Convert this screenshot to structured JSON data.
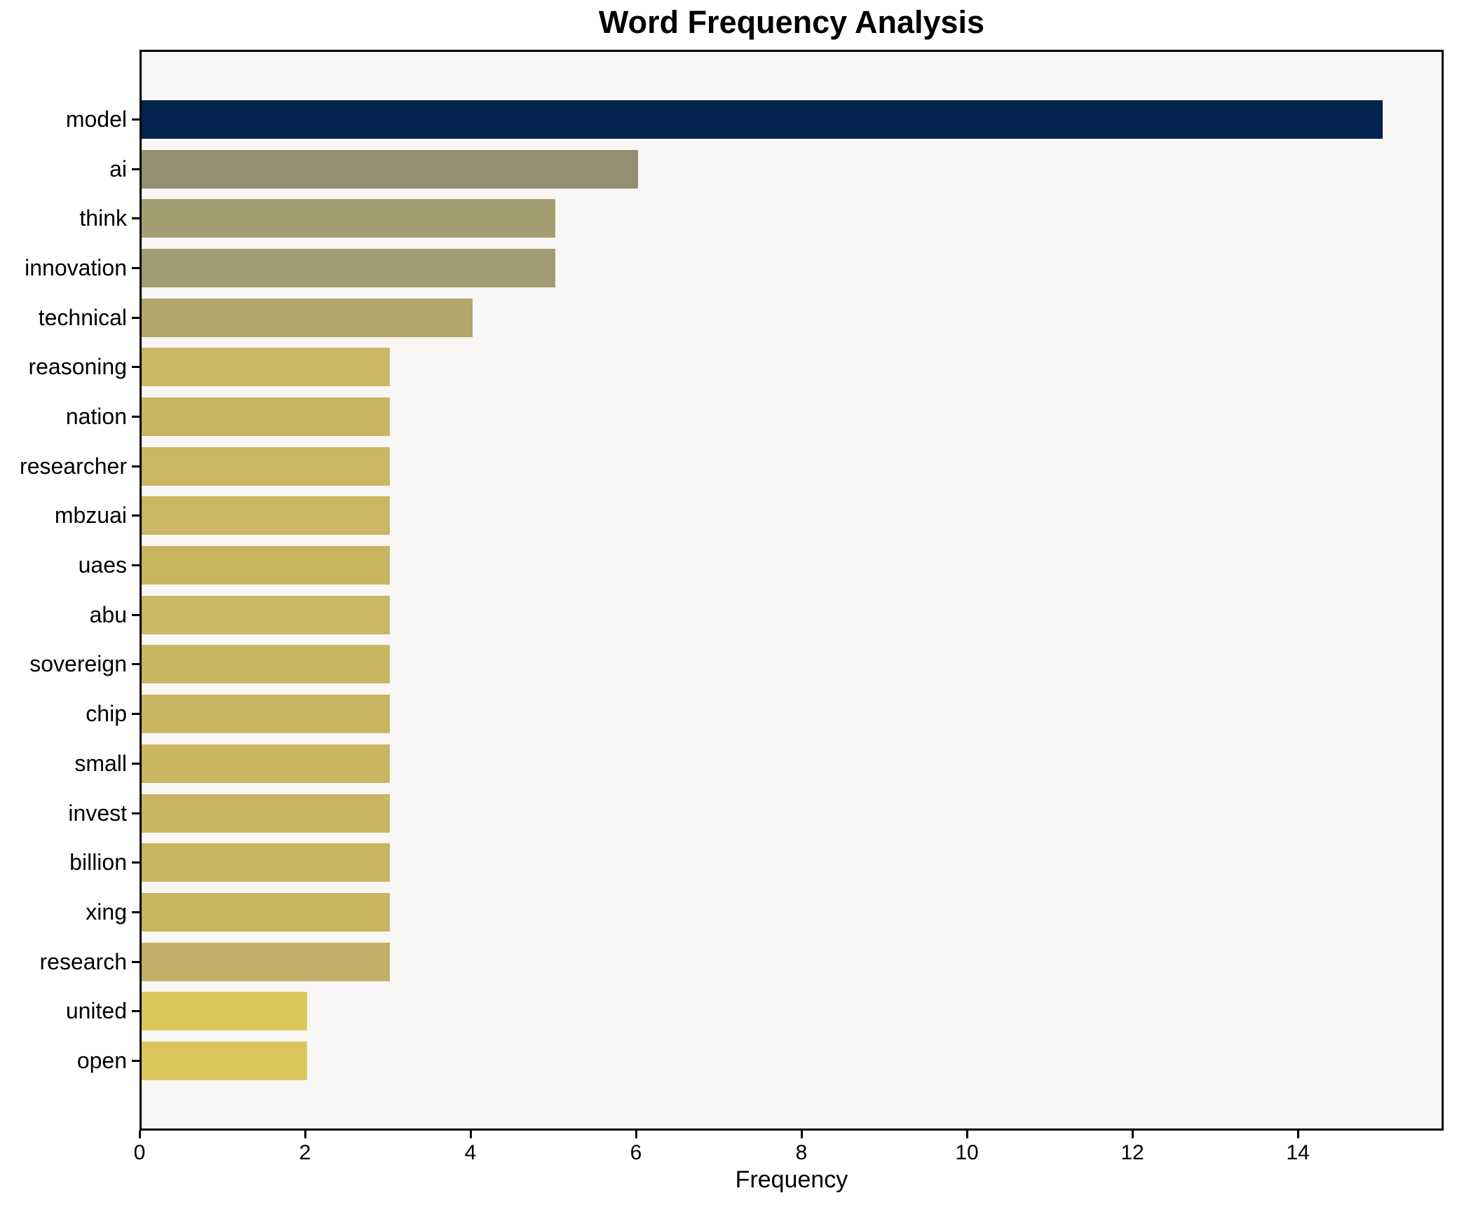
{
  "title": "Word Frequency Analysis",
  "chart_data": {
    "type": "bar",
    "orientation": "horizontal",
    "title": "Word Frequency Analysis",
    "xlabel": "Frequency",
    "ylabel": "",
    "categories": [
      "model",
      "ai",
      "think",
      "innovation",
      "technical",
      "reasoning",
      "nation",
      "researcher",
      "mbzuai",
      "uaes",
      "abu",
      "sovereign",
      "chip",
      "small",
      "invest",
      "billion",
      "xing",
      "research",
      "united",
      "open"
    ],
    "values": [
      15,
      6,
      5,
      5,
      4,
      3,
      3,
      3,
      3,
      3,
      3,
      3,
      3,
      3,
      3,
      3,
      3,
      3,
      2,
      2
    ],
    "bar_colors": [
      "#02234e",
      "#948e73",
      "#a49d72",
      "#a39b73",
      "#b1a76b",
      "#ccb765",
      "#c9b662",
      "#cab663",
      "#cab663",
      "#c8b560",
      "#cab764",
      "#c9b663",
      "#c9b562",
      "#cab661",
      "#c9b564",
      "#c8b562",
      "#cab55f",
      "#c1af67",
      "#ddc75a",
      "#dcc65b"
    ],
    "x_ticks": [
      0,
      2,
      4,
      6,
      8,
      10,
      12,
      14
    ],
    "xlim": [
      0,
      15.76
    ],
    "grid": false,
    "legend": null,
    "plot_background": "#f8f7f5",
    "figure_background": "#ffffff",
    "spine_color": "#000000"
  }
}
